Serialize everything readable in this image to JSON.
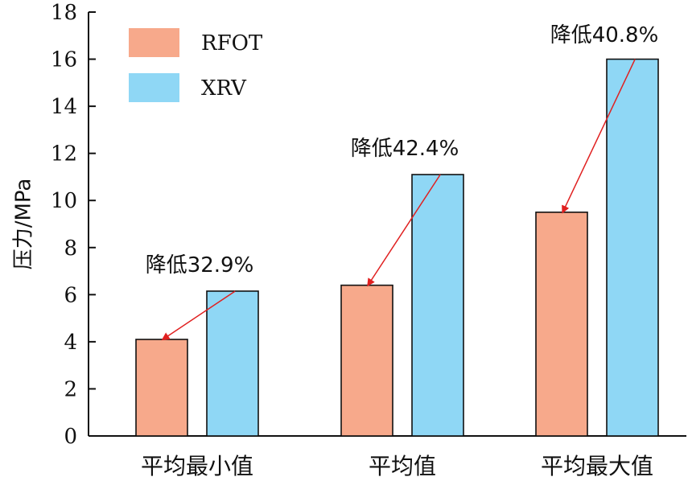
{
  "chart_data": {
    "type": "bar",
    "ylabel": "压力/MPa",
    "ylim": [
      0,
      18
    ],
    "yticks": [
      0,
      2,
      4,
      6,
      8,
      10,
      12,
      14,
      16,
      18
    ],
    "categories": [
      "平均最小值",
      "平均值",
      "平均最大值"
    ],
    "series": [
      {
        "name": "RFOT",
        "color": "#F7A98B",
        "values": [
          4.1,
          6.4,
          9.5
        ]
      },
      {
        "name": "XRV",
        "color": "#8FD7F5",
        "values": [
          6.15,
          11.1,
          16.0
        ]
      }
    ],
    "legend_position": "top-left",
    "grid": false,
    "annotations": [
      {
        "text": "降低32.9%",
        "category_index": 0
      },
      {
        "text": "降低42.4%",
        "category_index": 1
      },
      {
        "text": "降低40.8%",
        "category_index": 2
      }
    ],
    "arrow_color": "#E02020"
  }
}
